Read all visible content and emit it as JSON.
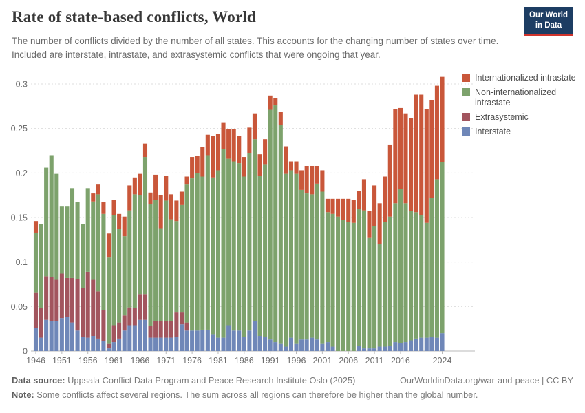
{
  "header": {
    "title": "Rate of state-based conflicts, World",
    "subtitle": "The number of conflicts divided by the number of all states. This accounts for the changing number of states over time. Included are interstate, intrastate, and extrasystemic conflicts that were ongoing that year.",
    "logo_line1": "Our World",
    "logo_line2": "in Data",
    "logo_bg_color": "#1d3d63",
    "logo_accent_color": "#d0342c"
  },
  "chart_data": {
    "type": "bar",
    "stacked": true,
    "title": "Rate of state-based conflicts, World",
    "xlabel": "",
    "ylabel": "",
    "ylim": [
      0,
      0.3
    ],
    "yticks": [
      0,
      0.05,
      0.1,
      0.15,
      0.2,
      0.25,
      0.3
    ],
    "ytick_labels": [
      "0",
      "0.05",
      "0.1",
      "0.15",
      "0.2",
      "0.25",
      "0.3"
    ],
    "xticks": [
      1946,
      1951,
      1956,
      1961,
      1966,
      1971,
      1976,
      1981,
      1986,
      1991,
      1996,
      2001,
      2006,
      2011,
      2016,
      2024
    ],
    "grid": "horizontal-dashed",
    "legend_position": "top-right",
    "legend_order": [
      "Internationalized intrastate",
      "Non-internationalized intrastate",
      "Extrasystemic",
      "Interstate"
    ],
    "years": [
      1946,
      1947,
      1948,
      1949,
      1950,
      1951,
      1952,
      1953,
      1954,
      1955,
      1956,
      1957,
      1958,
      1959,
      1960,
      1961,
      1962,
      1963,
      1964,
      1965,
      1966,
      1967,
      1968,
      1969,
      1970,
      1971,
      1972,
      1973,
      1974,
      1975,
      1976,
      1977,
      1978,
      1979,
      1980,
      1981,
      1982,
      1983,
      1984,
      1985,
      1986,
      1987,
      1988,
      1989,
      1990,
      1991,
      1992,
      1993,
      1994,
      1995,
      1996,
      1997,
      1998,
      1999,
      2000,
      2001,
      2002,
      2003,
      2004,
      2005,
      2006,
      2007,
      2008,
      2009,
      2010,
      2011,
      2012,
      2013,
      2014,
      2015,
      2016,
      2017,
      2018,
      2019,
      2020,
      2021,
      2022,
      2023,
      2024
    ],
    "series": [
      {
        "name": "Interstate",
        "color": "#6f87b8",
        "values": [
          0.026,
          0.015,
          0.035,
          0.034,
          0.034,
          0.037,
          0.038,
          0.032,
          0.023,
          0.016,
          0.015,
          0.017,
          0.014,
          0.011,
          0.003,
          0.01,
          0.014,
          0.023,
          0.029,
          0.029,
          0.035,
          0.035,
          0.015,
          0.015,
          0.015,
          0.015,
          0.015,
          0.016,
          0.03,
          0.023,
          0.023,
          0.023,
          0.024,
          0.024,
          0.019,
          0.015,
          0.015,
          0.029,
          0.023,
          0.023,
          0.016,
          0.023,
          0.034,
          0.017,
          0.016,
          0.013,
          0.01,
          0.008,
          0.005,
          0.015,
          0.008,
          0.013,
          0.013,
          0.015,
          0.013,
          0.008,
          0.01,
          0.005,
          0,
          0,
          0,
          0,
          0.006,
          0.003,
          0.003,
          0.003,
          0.005,
          0.005,
          0.006,
          0.01,
          0.009,
          0.01,
          0.012,
          0.014,
          0.015,
          0.015,
          0.016,
          0.015,
          0.02
        ]
      },
      {
        "name": "Extrasystemic",
        "color": "#a2555e",
        "values": [
          0.04,
          0.033,
          0.049,
          0.049,
          0.046,
          0.05,
          0.044,
          0.05,
          0.058,
          0.055,
          0.074,
          0.063,
          0.053,
          0.035,
          0.005,
          0.019,
          0.018,
          0.017,
          0.02,
          0.019,
          0.029,
          0.029,
          0.013,
          0.019,
          0.019,
          0.019,
          0.019,
          0.028,
          0.014,
          0.009,
          0,
          0,
          0,
          0,
          0,
          0,
          0,
          0,
          0,
          0,
          0,
          0,
          0,
          0,
          0,
          0,
          0,
          0,
          0,
          0,
          0,
          0,
          0,
          0,
          0,
          0,
          0,
          0,
          0,
          0,
          0,
          0,
          0,
          0,
          0,
          0,
          0,
          0,
          0,
          0,
          0,
          0,
          0,
          0,
          0,
          0,
          0,
          0,
          0
        ]
      },
      {
        "name": "Non-internationalized intrastate",
        "color": "#7da26c",
        "values": [
          0.067,
          0.095,
          0.122,
          0.137,
          0.119,
          0.076,
          0.081,
          0.101,
          0.086,
          0.072,
          0.094,
          0.088,
          0.109,
          0.108,
          0.097,
          0.124,
          0.105,
          0.089,
          0.109,
          0.128,
          0.111,
          0.154,
          0.137,
          0.136,
          0.104,
          0.135,
          0.114,
          0.102,
          0.12,
          0.155,
          0.171,
          0.177,
          0.172,
          0.196,
          0.176,
          0.188,
          0.212,
          0.187,
          0.19,
          0.188,
          0.18,
          0.199,
          0.204,
          0.18,
          0.194,
          0.258,
          0.266,
          0.246,
          0.194,
          0.188,
          0.191,
          0.168,
          0.164,
          0.161,
          0.175,
          0.171,
          0.146,
          0.149,
          0.151,
          0.147,
          0.145,
          0.144,
          0.154,
          0.155,
          0.124,
          0.137,
          0.115,
          0.14,
          0.145,
          0.156,
          0.173,
          0.156,
          0.145,
          0.142,
          0.138,
          0.129,
          0.156,
          0.178,
          0.192
        ]
      },
      {
        "name": "Internationalized intrastate",
        "color": "#c9573a",
        "values": [
          0.013,
          0,
          0,
          0,
          0,
          0,
          0,
          0,
          0,
          0,
          0,
          0.009,
          0.011,
          0.013,
          0.027,
          0.017,
          0.017,
          0.022,
          0.028,
          0.019,
          0.024,
          0.015,
          0.013,
          0.028,
          0.037,
          0.028,
          0.028,
          0.023,
          0.015,
          0.009,
          0.024,
          0.019,
          0.033,
          0.023,
          0.047,
          0.041,
          0.03,
          0.033,
          0.036,
          0.031,
          0.022,
          0.029,
          0.029,
          0.024,
          0.028,
          0.016,
          0.008,
          0.015,
          0.031,
          0.01,
          0.014,
          0.022,
          0.031,
          0.032,
          0.02,
          0.024,
          0.015,
          0.017,
          0.02,
          0.024,
          0.026,
          0.026,
          0.02,
          0.035,
          0.03,
          0.046,
          0.046,
          0.051,
          0.081,
          0.106,
          0.091,
          0.101,
          0.105,
          0.132,
          0.135,
          0.128,
          0.11,
          0.105,
          0.096
        ]
      }
    ]
  },
  "footer": {
    "source_label": "Data source:",
    "source_text": " Uppsala Conflict Data Program and Peace Research Institute Oslo (2025)",
    "link_text": "OurWorldinData.org/war-and-peace | CC BY",
    "note_label": "Note:",
    "note_text": " Some conflicts affect several regions. The sum across all regions can therefore be higher than the global number."
  }
}
